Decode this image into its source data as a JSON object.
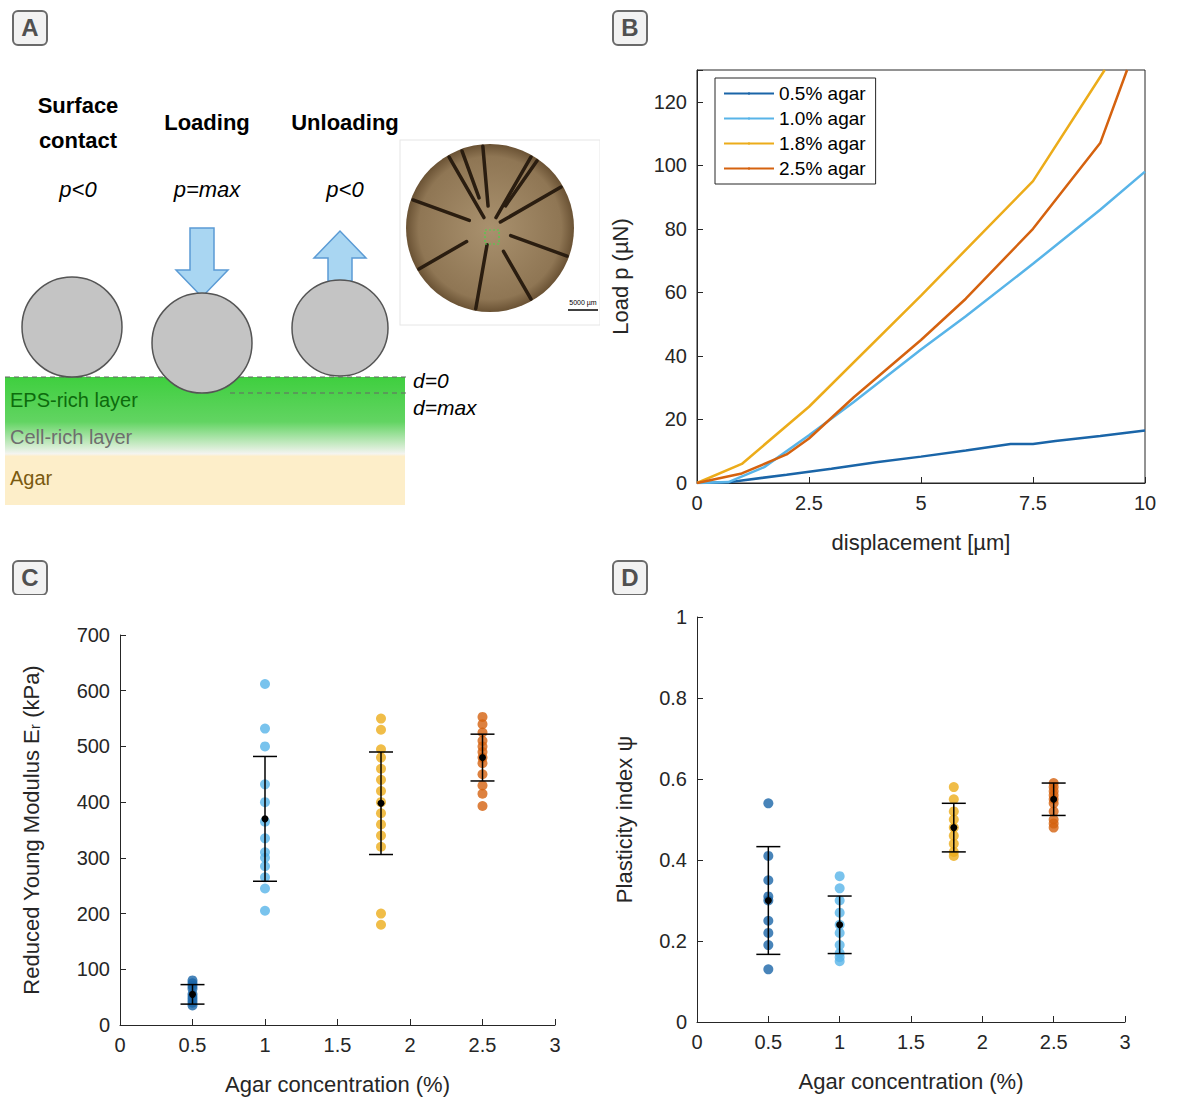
{
  "diagram": {
    "panel": "A",
    "stages": [
      {
        "title": "Surface contact",
        "load": "p<0"
      },
      {
        "title": "Loading",
        "load": "p=max"
      },
      {
        "title": "Unloading",
        "load": "p<0"
      }
    ],
    "depths": [
      "d=0",
      "d=max"
    ],
    "layers": [
      "EPS-rich layer",
      "Cell-rich layer",
      "Agar"
    ],
    "image": {
      "scale_bar": "5000 µm"
    }
  },
  "chart_data": [
    {
      "panel": "B",
      "type": "line",
      "xlabel": "displacement [µm]",
      "ylabel": "Load p (µN)",
      "xlim": [
        0,
        10
      ],
      "ylim": [
        0,
        130
      ],
      "xticks": [
        0,
        2.5,
        5,
        7.5,
        10
      ],
      "yticks": [
        0,
        20,
        40,
        60,
        80,
        100,
        120
      ],
      "grid": false,
      "legend": "upper left",
      "series": [
        {
          "name": "0.5% agar",
          "color": "#1a65a8",
          "x": [
            0,
            0.7,
            1,
            2,
            3,
            4,
            5,
            6,
            7,
            7.5,
            8,
            9,
            10
          ],
          "values": [
            0,
            0.2,
            0.8,
            2.6,
            4.5,
            6.5,
            8.3,
            10.2,
            12.3,
            12.3,
            13.2,
            14.8,
            16.5
          ]
        },
        {
          "name": "1.0% agar",
          "color": "#58b4e8",
          "x": [
            0,
            0.7,
            1.5,
            2.5,
            3.5,
            5,
            6,
            7.5,
            9,
            10
          ],
          "values": [
            0,
            0.3,
            5,
            15,
            25.5,
            42,
            52.5,
            69,
            86,
            98
          ]
        },
        {
          "name": "1.8% agar",
          "color": "#ecac1a",
          "x": [
            0,
            1,
            2.5,
            5,
            7.5,
            9.1
          ],
          "values": [
            0,
            6,
            24,
            59,
            95,
            130
          ]
        },
        {
          "name": "2.5% agar",
          "color": "#d5620f",
          "x": [
            0,
            1,
            2,
            2.5,
            3.5,
            5,
            6,
            7.5,
            9,
            9.6
          ],
          "values": [
            0,
            3,
            9,
            14,
            27,
            45,
            58,
            80,
            107,
            130
          ]
        }
      ]
    },
    {
      "panel": "C",
      "type": "scatter",
      "xlabel": "Agar concentration (%)",
      "ylabel": "Reduced Young Modulus Eᵣ (kPa)",
      "xlim": [
        0,
        3
      ],
      "ylim": [
        0,
        700
      ],
      "xticks": [
        0,
        0.5,
        1,
        1.5,
        2,
        2.5,
        3
      ],
      "yticks": [
        0,
        100,
        200,
        300,
        400,
        500,
        600,
        700
      ],
      "grid": false,
      "series": [
        {
          "color": "#1a65a8",
          "x": 0.5,
          "values": [
            80,
            75,
            70,
            65,
            55,
            50,
            45,
            40,
            35
          ],
          "mean": 55,
          "error": 17.5
        },
        {
          "color": "#58b4e8",
          "x": 1,
          "values": [
            612,
            532,
            500,
            432,
            400,
            365,
            335,
            310,
            300,
            285,
            265,
            245,
            205
          ],
          "mean": 370,
          "error": 112
        },
        {
          "color": "#ecac1a",
          "x": 1.8,
          "values": [
            550,
            530,
            495,
            480,
            460,
            440,
            420,
            400,
            380,
            360,
            340,
            320,
            200,
            180
          ],
          "mean": 398,
          "error": 92
        },
        {
          "color": "#d5620f",
          "x": 2.5,
          "values": [
            553,
            540,
            525,
            510,
            500,
            490,
            480,
            470,
            450,
            430,
            415,
            393
          ],
          "mean": 480,
          "error": 42
        }
      ]
    },
    {
      "panel": "D",
      "type": "scatter",
      "xlabel": "Agar concentration (%)",
      "ylabel": "Plasticity index ψ",
      "xlim": [
        0,
        3
      ],
      "ylim": [
        0,
        1
      ],
      "xticks": [
        0,
        0.5,
        1,
        1.5,
        2,
        2.5,
        3
      ],
      "yticks": [
        0,
        0.2,
        0.4,
        0.6,
        0.8,
        1
      ],
      "grid": false,
      "series": [
        {
          "color": "#1a65a8",
          "x": 0.5,
          "values": [
            0.54,
            0.41,
            0.35,
            0.31,
            0.3,
            0.25,
            0.22,
            0.19,
            0.13
          ],
          "mean": 0.3,
          "error": 0.133
        },
        {
          "color": "#58b4e8",
          "x": 1,
          "values": [
            0.36,
            0.33,
            0.3,
            0.27,
            0.24,
            0.22,
            0.19,
            0.17,
            0.16,
            0.15
          ],
          "mean": 0.24,
          "error": 0.071
        },
        {
          "color": "#ecac1a",
          "x": 1.8,
          "values": [
            0.58,
            0.55,
            0.52,
            0.5,
            0.48,
            0.46,
            0.44,
            0.42,
            0.41
          ],
          "mean": 0.48,
          "error": 0.06
        },
        {
          "color": "#d5620f",
          "x": 2.5,
          "values": [
            0.59,
            0.58,
            0.57,
            0.56,
            0.55,
            0.54,
            0.52,
            0.5,
            0.49,
            0.48
          ],
          "mean": 0.55,
          "error": 0.04
        }
      ]
    }
  ]
}
